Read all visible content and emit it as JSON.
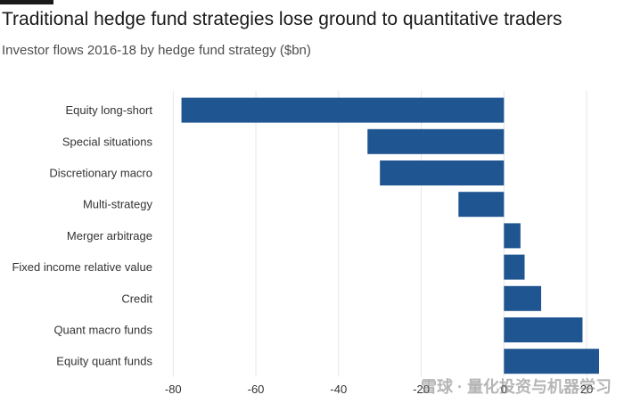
{
  "chart_data": {
    "type": "bar",
    "orientation": "horizontal",
    "title": "Traditional hedge fund strategies lose ground to quantitative traders",
    "subtitle": "Investor flows 2016-18 by hedge fund strategy ($bn)",
    "categories": [
      "Equity long-short",
      "Special situations",
      "Discretionary macro",
      "Multi-strategy",
      "Merger arbitrage",
      "Fixed income relative value",
      "Credit",
      "Quant macro funds",
      "Equity quant funds"
    ],
    "values": [
      -78,
      -33,
      -30,
      -11,
      4,
      5,
      9,
      19,
      23
    ],
    "xlim": [
      -82,
      23
    ],
    "xticks": [
      -80,
      -60,
      -40,
      -20,
      0,
      20
    ],
    "xtick_labels": [
      "-80",
      "-60",
      "-40",
      "-20",
      "0",
      "20"
    ],
    "xlabel": "",
    "ylabel": "",
    "grid": true,
    "bar_color": "#1f5591"
  },
  "watermark": "雪球 · 量化投资与机器学习"
}
